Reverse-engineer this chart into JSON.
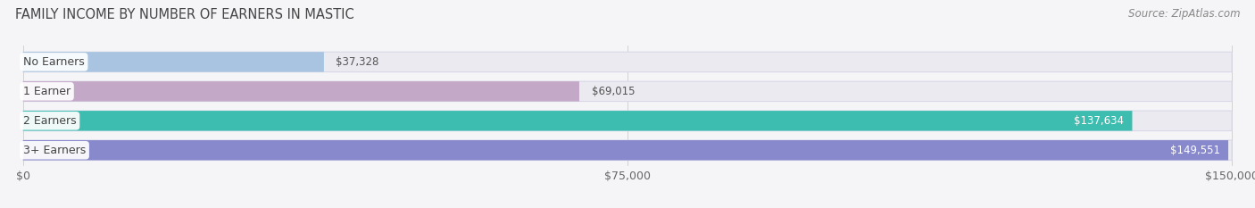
{
  "title": "FAMILY INCOME BY NUMBER OF EARNERS IN MASTIC",
  "source": "Source: ZipAtlas.com",
  "categories": [
    "No Earners",
    "1 Earner",
    "2 Earners",
    "3+ Earners"
  ],
  "values": [
    37328,
    69015,
    137634,
    149551
  ],
  "max_value": 150000,
  "bar_colors": [
    "#a8c4e0",
    "#c4a8c8",
    "#3dbdb0",
    "#8888cc"
  ],
  "bar_bg_color": "#eaeaf0",
  "bar_border_color": "#d8d8e8",
  "label_bg": "#ffffff",
  "value_label_colors": [
    "#555555",
    "#555555",
    "#ffffff",
    "#ffffff"
  ],
  "x_ticks": [
    0,
    75000,
    150000
  ],
  "x_tick_labels": [
    "$0",
    "$75,000",
    "$150,000"
  ],
  "title_fontsize": 10.5,
  "source_fontsize": 8.5,
  "bar_label_fontsize": 8.5,
  "category_fontsize": 9,
  "tick_fontsize": 9,
  "fig_bg": "#f5f5f8",
  "figsize": [
    14.06,
    2.33
  ],
  "dpi": 100
}
